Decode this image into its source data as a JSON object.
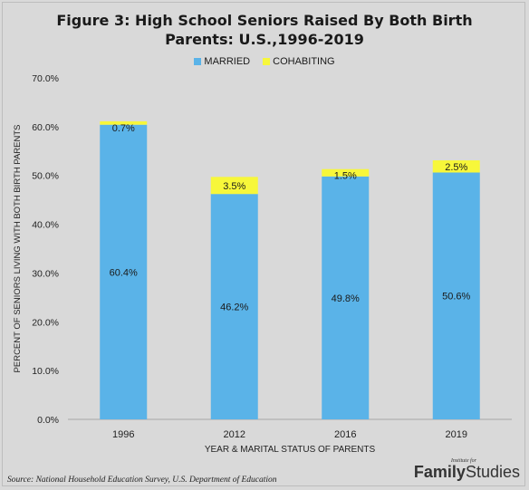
{
  "title_line1": "Figure 3: High School Seniors Raised By Both Birth",
  "title_line2": "Parents: U.S.,1996-2019",
  "legend": [
    {
      "label": "MARRIED",
      "color": "#5ab3e8"
    },
    {
      "label": "COHABITING",
      "color": "#f7f73a"
    }
  ],
  "source": "Source: National Household Education Survey, U.S. Department of Education",
  "logo": {
    "small": "Institute for",
    "bold": "Family",
    "light": "Studies"
  },
  "chart_data": {
    "type": "bar",
    "stacked": true,
    "categories": [
      "1996",
      "2012",
      "2016",
      "2019"
    ],
    "series": [
      {
        "name": "MARRIED",
        "color": "#5ab3e8",
        "values": [
          60.4,
          46.2,
          49.8,
          50.6
        ],
        "labels": [
          "60.4%",
          "46.2%",
          "49.8%",
          "50.6%"
        ]
      },
      {
        "name": "COHABITING",
        "color": "#f7f73a",
        "values": [
          0.7,
          3.5,
          1.5,
          2.5
        ],
        "labels": [
          "0.7%",
          "3.5%",
          "1.5%",
          "2.5%"
        ]
      }
    ],
    "xlabel": "YEAR & MARITAL STATUS OF PARENTS",
    "ylabel": "PERCENT OF SENIORS LIVING WITH BOTH BIRTH PARENTS",
    "ylim": [
      0,
      70
    ],
    "yticks": [
      "0.0%",
      "10.0%",
      "20.0%",
      "30.0%",
      "40.0%",
      "50.0%",
      "60.0%",
      "70.0%"
    ],
    "grid": false,
    "legend_position": "top"
  }
}
